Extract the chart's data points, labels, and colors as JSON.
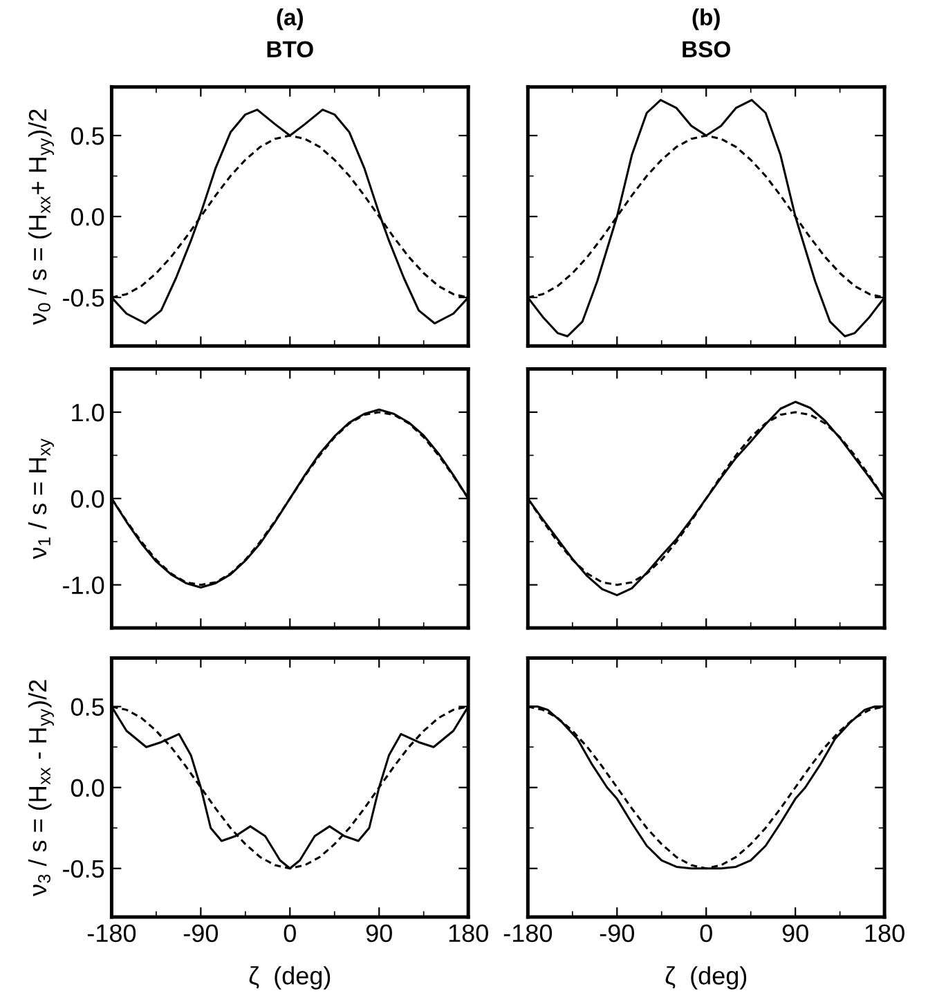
{
  "chart_data": [
    {
      "type": "line",
      "title": "(a)",
      "subtitle": "BTO",
      "ylabel": "ν$_{0}$ / s = (H$_{xx}$+ H$_{yy}$)/2",
      "xlim": [
        -180,
        180
      ],
      "xticks": [
        -180,
        -90,
        0,
        90,
        180
      ],
      "ylim": [
        -0.8,
        0.8
      ],
      "yticks": [
        -0.5,
        {
          "value": 0,
          "label": "0.0"
        },
        0.5
      ],
      "tick_labels": "y",
      "series": [
        {
          "color": "#000000",
          "line_style": "solid",
          "x": [
            -180,
            -165,
            -146,
            -130,
            -115,
            -100,
            -90,
            -75,
            -60,
            -45,
            -33,
            -15,
            0,
            15,
            33,
            45,
            60,
            75,
            90,
            100,
            115,
            130,
            146,
            165,
            180
          ],
          "values": [
            -0.5,
            -0.6,
            -0.66,
            -0.58,
            -0.38,
            -0.15,
            0.02,
            0.3,
            0.52,
            0.63,
            0.66,
            0.57,
            0.5,
            0.57,
            0.66,
            0.63,
            0.52,
            0.3,
            0.02,
            -0.15,
            -0.38,
            -0.58,
            -0.66,
            -0.6,
            -0.5
          ]
        },
        {
          "color": "#000000",
          "line_style": "dashed",
          "x": [
            -180,
            -165,
            -150,
            -135,
            -120,
            -105,
            -90,
            -75,
            -60,
            -45,
            -30,
            -15,
            0,
            15,
            30,
            45,
            60,
            75,
            90,
            105,
            120,
            135,
            150,
            165,
            180
          ],
          "values": [
            -0.5,
            -0.48,
            -0.43,
            -0.35,
            -0.25,
            -0.13,
            0.0,
            0.13,
            0.25,
            0.35,
            0.43,
            0.48,
            0.5,
            0.48,
            0.43,
            0.35,
            0.25,
            0.13,
            0.0,
            -0.13,
            -0.25,
            -0.35,
            -0.43,
            -0.48,
            -0.5
          ]
        }
      ]
    },
    {
      "type": "line",
      "title": "(b)",
      "subtitle": "BSO",
      "xlim": [
        -180,
        180
      ],
      "xticks": [
        -180,
        -90,
        0,
        90,
        180
      ],
      "ylim": [
        -0.8,
        0.8
      ],
      "yticks": [
        -0.5,
        0.0,
        0.5
      ],
      "tick_labels": false,
      "series": [
        {
          "color": "#000000",
          "line_style": "solid",
          "x": [
            -180,
            -165,
            -150,
            -140,
            -125,
            -110,
            -90,
            -75,
            -60,
            -46,
            -30,
            -15,
            0,
            15,
            30,
            46,
            60,
            75,
            90,
            110,
            125,
            140,
            150,
            165,
            180
          ],
          "values": [
            -0.5,
            -0.62,
            -0.72,
            -0.74,
            -0.65,
            -0.4,
            0.0,
            0.38,
            0.64,
            0.72,
            0.67,
            0.56,
            0.5,
            0.56,
            0.67,
            0.72,
            0.64,
            0.38,
            0.0,
            -0.4,
            -0.65,
            -0.74,
            -0.72,
            -0.62,
            -0.5
          ]
        },
        {
          "color": "#000000",
          "line_style": "dashed",
          "x": [
            -180,
            -165,
            -150,
            -135,
            -120,
            -105,
            -90,
            -75,
            -60,
            -45,
            -30,
            -15,
            0,
            15,
            30,
            45,
            60,
            75,
            90,
            105,
            120,
            135,
            150,
            165,
            180
          ],
          "values": [
            -0.5,
            -0.48,
            -0.43,
            -0.35,
            -0.25,
            -0.13,
            0.0,
            0.13,
            0.25,
            0.35,
            0.43,
            0.48,
            0.5,
            0.48,
            0.43,
            0.35,
            0.25,
            0.13,
            0.0,
            -0.13,
            -0.25,
            -0.35,
            -0.43,
            -0.48,
            -0.5
          ]
        }
      ]
    },
    {
      "type": "line",
      "ylabel": "ν$_{1}$ / s = H$_{xy}$",
      "xlim": [
        -180,
        180
      ],
      "xticks": [
        -180,
        -90,
        0,
        90,
        180
      ],
      "ylim": [
        -1.5,
        1.5
      ],
      "yticks": [
        {
          "value": -1,
          "label": "-1.0"
        },
        {
          "value": 0,
          "label": "0.0"
        },
        {
          "value": 1,
          "label": "1.0"
        }
      ],
      "tick_labels": "y",
      "series": [
        {
          "color": "#000000",
          "line_style": "solid",
          "x": [
            -180,
            -165,
            -150,
            -135,
            -120,
            -105,
            -90,
            -75,
            -60,
            -45,
            -30,
            -15,
            0,
            15,
            30,
            45,
            60,
            75,
            90,
            105,
            120,
            135,
            150,
            165,
            180
          ],
          "values": [
            0.0,
            -0.27,
            -0.52,
            -0.73,
            -0.88,
            -0.98,
            -1.03,
            -0.98,
            -0.88,
            -0.72,
            -0.52,
            -0.27,
            0.0,
            0.27,
            0.52,
            0.72,
            0.88,
            0.98,
            1.03,
            0.98,
            0.88,
            0.73,
            0.52,
            0.27,
            0.0
          ]
        },
        {
          "color": "#000000",
          "line_style": "dashed",
          "x": [
            -180,
            -165,
            -150,
            -135,
            -120,
            -105,
            -90,
            -75,
            -60,
            -45,
            -30,
            -15,
            0,
            15,
            30,
            45,
            60,
            75,
            90,
            105,
            120,
            135,
            150,
            165,
            180
          ],
          "values": [
            0.0,
            -0.26,
            -0.5,
            -0.71,
            -0.87,
            -0.97,
            -1.0,
            -0.97,
            -0.87,
            -0.71,
            -0.5,
            -0.26,
            0.0,
            0.26,
            0.5,
            0.71,
            0.87,
            0.97,
            1.0,
            0.97,
            0.87,
            0.71,
            0.5,
            0.26,
            0.0
          ]
        }
      ]
    },
    {
      "type": "line",
      "xlim": [
        -180,
        180
      ],
      "xticks": [
        -180,
        -90,
        0,
        90,
        180
      ],
      "ylim": [
        -1.5,
        1.5
      ],
      "yticks": [
        -1.0,
        0.0,
        1.0
      ],
      "tick_labels": false,
      "series": [
        {
          "color": "#000000",
          "line_style": "solid",
          "x": [
            -180,
            -165,
            -150,
            -135,
            -120,
            -105,
            -90,
            -75,
            -60,
            -45,
            -30,
            -15,
            0,
            15,
            30,
            45,
            60,
            75,
            90,
            105,
            120,
            135,
            150,
            165,
            180
          ],
          "values": [
            0.0,
            -0.24,
            -0.47,
            -0.7,
            -0.9,
            -1.05,
            -1.12,
            -1.04,
            -0.86,
            -0.66,
            -0.47,
            -0.24,
            0.0,
            0.24,
            0.47,
            0.66,
            0.86,
            1.04,
            1.12,
            1.05,
            0.9,
            0.7,
            0.47,
            0.24,
            0.0
          ]
        },
        {
          "color": "#000000",
          "line_style": "dashed",
          "x": [
            -180,
            -165,
            -150,
            -135,
            -120,
            -105,
            -90,
            -75,
            -60,
            -45,
            -30,
            -15,
            0,
            15,
            30,
            45,
            60,
            75,
            90,
            105,
            120,
            135,
            150,
            165,
            180
          ],
          "values": [
            0.0,
            -0.26,
            -0.5,
            -0.71,
            -0.87,
            -0.97,
            -1.0,
            -0.97,
            -0.87,
            -0.71,
            -0.5,
            -0.26,
            0.0,
            0.26,
            0.5,
            0.71,
            0.87,
            0.97,
            1.0,
            0.97,
            0.87,
            0.71,
            0.5,
            0.26,
            0.0
          ]
        }
      ]
    },
    {
      "type": "line",
      "ylabel": "ν$_{3}$ / s = (H$_{xx}$ - H$_{yy}$)/2",
      "xlabel": "ζ  (deg)",
      "xlim": [
        -180,
        180
      ],
      "xticks": [
        -180,
        -90,
        0,
        90,
        180
      ],
      "ylim": [
        -0.8,
        0.8
      ],
      "yticks": [
        -0.5,
        {
          "value": 0,
          "label": "0.0"
        },
        0.5
      ],
      "series": [
        {
          "color": "#000000",
          "line_style": "solid",
          "x": [
            -180,
            -165,
            -145,
            -130,
            -112,
            -100,
            -90,
            -80,
            -69,
            -55,
            -40,
            -25,
            -10,
            0,
            10,
            25,
            40,
            55,
            69,
            80,
            90,
            100,
            112,
            130,
            145,
            165,
            180
          ],
          "values": [
            0.5,
            0.35,
            0.25,
            0.28,
            0.33,
            0.2,
            0.0,
            -0.25,
            -0.33,
            -0.3,
            -0.24,
            -0.3,
            -0.45,
            -0.5,
            -0.45,
            -0.3,
            -0.24,
            -0.3,
            -0.33,
            -0.25,
            0.0,
            0.2,
            0.33,
            0.28,
            0.25,
            0.35,
            0.5
          ]
        },
        {
          "color": "#000000",
          "line_style": "dashed",
          "x": [
            -180,
            -165,
            -150,
            -135,
            -120,
            -105,
            -90,
            -75,
            -60,
            -45,
            -30,
            -15,
            0,
            15,
            30,
            45,
            60,
            75,
            90,
            105,
            120,
            135,
            150,
            165,
            180
          ],
          "values": [
            0.5,
            0.48,
            0.43,
            0.35,
            0.25,
            0.13,
            0.0,
            -0.13,
            -0.25,
            -0.35,
            -0.43,
            -0.48,
            -0.5,
            -0.48,
            -0.43,
            -0.35,
            -0.25,
            -0.13,
            0.0,
            0.13,
            0.25,
            0.35,
            0.43,
            0.48,
            0.5
          ]
        }
      ]
    },
    {
      "type": "line",
      "xlabel": "ζ  (deg)",
      "xlim": [
        -180,
        180
      ],
      "xticks": [
        -180,
        -90,
        0,
        90,
        180
      ],
      "ylim": [
        -0.8,
        0.8
      ],
      "yticks": [
        -0.5,
        0.0,
        0.5
      ],
      "tick_labels": "x",
      "series": [
        {
          "color": "#000000",
          "line_style": "solid",
          "x": [
            -180,
            -170,
            -160,
            -145,
            -130,
            -115,
            -100,
            -90,
            -75,
            -60,
            -45,
            -30,
            -15,
            0,
            15,
            30,
            45,
            60,
            75,
            90,
            100,
            115,
            130,
            145,
            160,
            170,
            180
          ],
          "values": [
            0.5,
            0.5,
            0.48,
            0.4,
            0.3,
            0.14,
            0.0,
            -0.07,
            -0.22,
            -0.36,
            -0.45,
            -0.49,
            -0.5,
            -0.5,
            -0.5,
            -0.49,
            -0.45,
            -0.36,
            -0.22,
            -0.07,
            0.0,
            0.14,
            0.3,
            0.4,
            0.48,
            0.5,
            0.5
          ]
        },
        {
          "color": "#000000",
          "line_style": "dashed",
          "x": [
            -180,
            -165,
            -150,
            -135,
            -120,
            -105,
            -90,
            -75,
            -60,
            -45,
            -30,
            -15,
            0,
            15,
            30,
            45,
            60,
            75,
            90,
            105,
            120,
            135,
            150,
            165,
            180
          ],
          "values": [
            0.5,
            0.48,
            0.43,
            0.35,
            0.25,
            0.13,
            0.0,
            -0.13,
            -0.25,
            -0.35,
            -0.43,
            -0.48,
            -0.5,
            -0.48,
            -0.43,
            -0.35,
            -0.25,
            -0.13,
            0.0,
            0.13,
            0.25,
            0.35,
            0.43,
            0.48,
            0.5
          ]
        }
      ]
    }
  ]
}
